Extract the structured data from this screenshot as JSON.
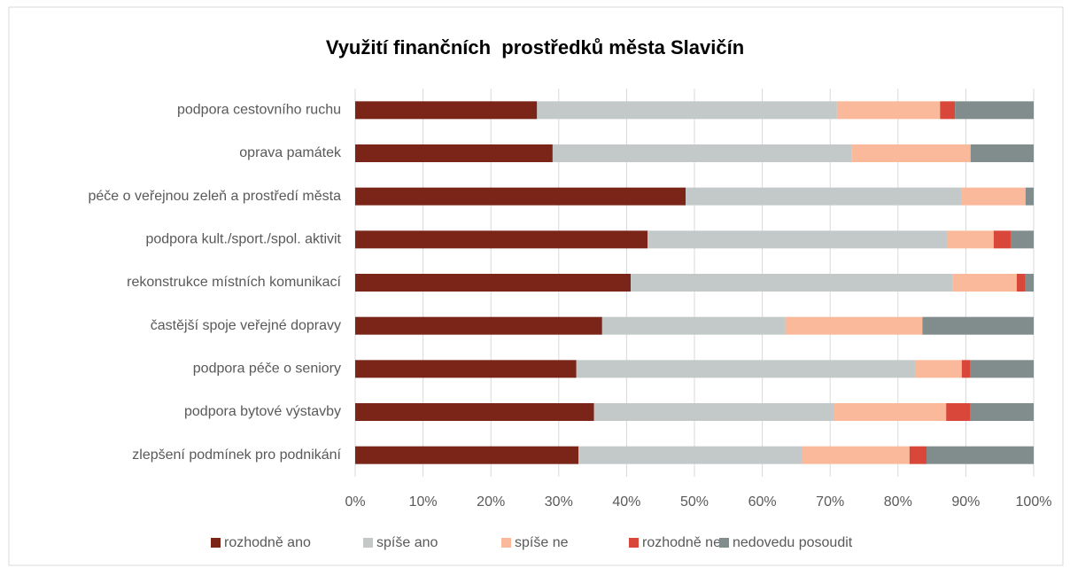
{
  "chart_data": {
    "type": "stacked_bar_horizontal",
    "title": "Využití finančních  prostředků města Slavičín",
    "categories": [
      "podpora cestovního ruchu",
      "oprava památek",
      "péče o veřejnou zeleň a prostředí města",
      "podpora kult./sport./spol. aktivit",
      "rekonstrukce místních komunikací",
      "častější spoje veřejné dopravy",
      "podpora péče o seniory",
      "podpora bytové výstavby",
      "zlepšení podmínek pro podnikání"
    ],
    "series": [
      {
        "name": "rozhodně ano",
        "color": "#7b2418",
        "values": [
          26.8,
          29.1,
          48.7,
          43.1,
          40.6,
          36.4,
          32.6,
          35.2,
          32.9
        ]
      },
      {
        "name": "spíše ano",
        "color": "#c3c9c9",
        "values": [
          44.2,
          44.1,
          40.6,
          44.1,
          47.5,
          27.0,
          49.9,
          35.3,
          32.9
        ]
      },
      {
        "name": "spíše ne",
        "color": "#f9b99a",
        "values": [
          15.2,
          17.5,
          9.5,
          6.9,
          9.4,
          20.2,
          6.9,
          16.6,
          15.9
        ]
      },
      {
        "name": "rozhodně ne",
        "color": "#d9463a",
        "values": [
          2.2,
          0,
          0,
          2.5,
          1.3,
          0,
          1.3,
          3.6,
          2.5
        ]
      },
      {
        "name": "nedovedu posoudit",
        "color": "#818c8c",
        "values": [
          11.6,
          9.3,
          1.2,
          3.4,
          1.2,
          16.4,
          9.3,
          9.3,
          15.8
        ]
      }
    ],
    "xlim": [
      0,
      100
    ],
    "xticks": [
      {
        "value": 0,
        "label": "0%"
      },
      {
        "value": 10,
        "label": "10%"
      },
      {
        "value": 20,
        "label": "20%"
      },
      {
        "value": 30,
        "label": "30%"
      },
      {
        "value": 40,
        "label": "40%"
      },
      {
        "value": 50,
        "label": "50%"
      },
      {
        "value": 60,
        "label": "60%"
      },
      {
        "value": 70,
        "label": "70%"
      },
      {
        "value": 80,
        "label": "80%"
      },
      {
        "value": 90,
        "label": "90%"
      },
      {
        "value": 100,
        "label": "100%"
      }
    ],
    "grid": true,
    "legend": "bottom"
  }
}
